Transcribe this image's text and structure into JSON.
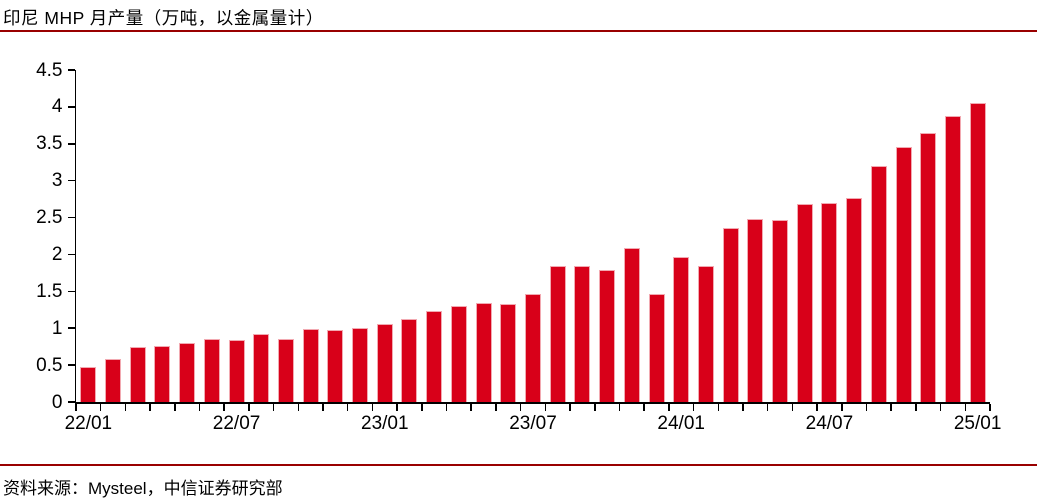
{
  "header": {
    "title": "印尼 MHP 月产量（万吨，以金属量计）"
  },
  "footer": {
    "source": "资料来源：Mysteel，中信证券研究部"
  },
  "colors": {
    "bar": "#d80019",
    "bar_edge": "#f2a9b1",
    "rule": "#990000",
    "axis": "#000000",
    "text": "#000000",
    "background": "#ffffff"
  },
  "chart_data": {
    "type": "bar",
    "title": "印尼 MHP 月产量（万吨，以金属量计）",
    "xlabel": "",
    "ylabel": "",
    "categories": [
      "22/01",
      "22/02",
      "22/03",
      "22/04",
      "22/05",
      "22/06",
      "22/07",
      "22/08",
      "22/09",
      "22/10",
      "22/11",
      "22/12",
      "23/01",
      "23/02",
      "23/03",
      "23/04",
      "23/05",
      "23/06",
      "23/07",
      "23/08",
      "23/09",
      "23/10",
      "23/11",
      "23/12",
      "24/01",
      "24/02",
      "24/03",
      "24/04",
      "24/05",
      "24/06",
      "24/07",
      "24/08",
      "24/09",
      "24/10",
      "24/11",
      "24/12",
      "25/01"
    ],
    "values": [
      0.47,
      0.58,
      0.74,
      0.76,
      0.8,
      0.85,
      0.84,
      0.92,
      0.86,
      0.99,
      0.97,
      1.0,
      1.06,
      1.12,
      1.23,
      1.3,
      1.34,
      1.33,
      1.46,
      1.84,
      1.85,
      1.79,
      2.09,
      1.46,
      1.96,
      1.84,
      2.36,
      2.48,
      2.47,
      2.68,
      2.7,
      2.77,
      3.2,
      3.45,
      3.64,
      3.87,
      4.05
    ],
    "x_tick_labels": [
      "22/01",
      "22/07",
      "23/01",
      "23/07",
      "24/01",
      "24/07",
      "25/01"
    ],
    "x_tick_label_indices": [
      0,
      6,
      12,
      18,
      24,
      30,
      36
    ],
    "ylim": [
      0,
      4.5
    ],
    "y_tick_step": 0.5,
    "y_tick_labels": [
      "0",
      "0.5",
      "1",
      "1.5",
      "2",
      "2.5",
      "3",
      "3.5",
      "4",
      "4.5"
    ],
    "grid": false,
    "legend_position": "none"
  }
}
